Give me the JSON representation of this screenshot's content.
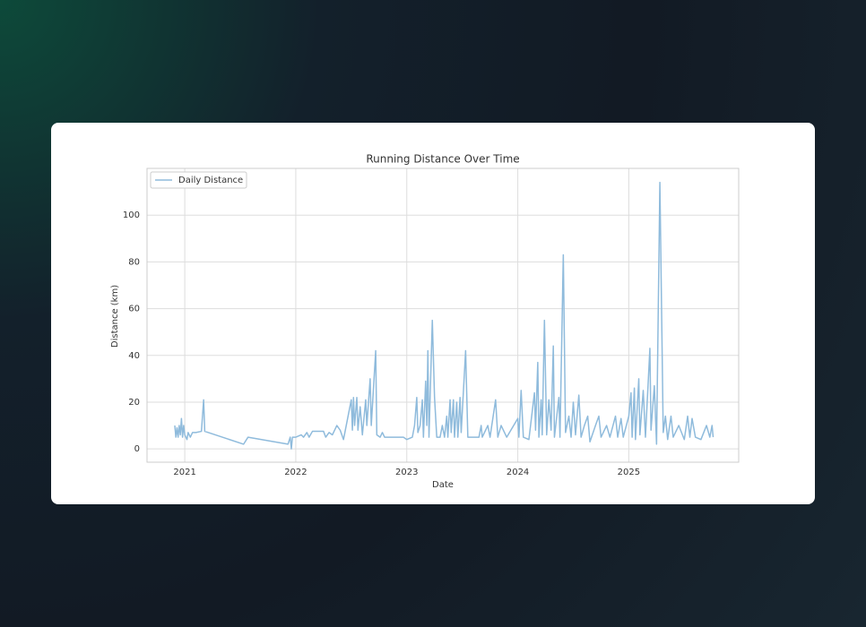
{
  "chart_data": {
    "type": "line",
    "title": "Running Distance Over Time",
    "x_label": "Date",
    "y_label": "Distance (km)",
    "x": [
      2020.91,
      2020.92,
      2020.93,
      2020.94,
      2020.95,
      2020.96,
      2020.97,
      2020.98,
      2020.99,
      2021.0,
      2021.02,
      2021.03,
      2021.05,
      2021.07,
      2021.1,
      2021.15,
      2021.17,
      2021.18,
      2021.53,
      2021.57,
      2021.93,
      2021.95,
      2021.96,
      2021.97,
      2022.0,
      2022.05,
      2022.07,
      2022.1,
      2022.12,
      2022.15,
      2022.25,
      2022.27,
      2022.3,
      2022.33,
      2022.37,
      2022.4,
      2022.43,
      2022.5,
      2022.51,
      2022.52,
      2022.53,
      2022.55,
      2022.56,
      2022.58,
      2022.6,
      2022.63,
      2022.64,
      2022.67,
      2022.68,
      2022.72,
      2022.73,
      2022.76,
      2022.78,
      2022.8,
      2022.9,
      2022.97,
      2023.0,
      2023.05,
      2023.07,
      2023.09,
      2023.1,
      2023.12,
      2023.14,
      2023.15,
      2023.17,
      2023.18,
      2023.19,
      2023.2,
      2023.23,
      2023.25,
      2023.27,
      2023.3,
      2023.32,
      2023.34,
      2023.36,
      2023.37,
      2023.39,
      2023.4,
      2023.42,
      2023.43,
      2023.45,
      2023.46,
      2023.48,
      2023.49,
      2023.53,
      2023.55,
      2023.6,
      2023.65,
      2023.67,
      2023.68,
      2023.73,
      2023.75,
      2023.8,
      2023.82,
      2023.85,
      2023.9,
      2024.0,
      2024.01,
      2024.03,
      2024.05,
      2024.1,
      2024.15,
      2024.16,
      2024.18,
      2024.19,
      2024.21,
      2024.22,
      2024.24,
      2024.26,
      2024.28,
      2024.3,
      2024.32,
      2024.33,
      2024.37,
      2024.38,
      2024.41,
      2024.43,
      2024.46,
      2024.48,
      2024.5,
      2024.52,
      2024.55,
      2024.57,
      2024.6,
      2024.63,
      2024.65,
      2024.7,
      2024.73,
      2024.75,
      2024.8,
      2024.83,
      2024.88,
      2024.9,
      2024.93,
      2024.95,
      2025.0,
      2025.02,
      2025.03,
      2025.05,
      2025.06,
      2025.09,
      2025.1,
      2025.13,
      2025.15,
      2025.19,
      2025.2,
      2025.23,
      2025.25,
      2025.28,
      2025.31,
      2025.33,
      2025.35,
      2025.38,
      2025.4,
      2025.45,
      2025.5,
      2025.53,
      2025.55,
      2025.57,
      2025.6,
      2025.65,
      2025.7,
      2025.73,
      2025.75,
      2025.76
    ],
    "series": [
      {
        "name": "Daily Distance",
        "color": "#8fbbdc",
        "values": [
          10,
          5,
          9,
          5,
          10,
          6,
          13,
          5,
          10,
          6,
          4,
          7,
          5,
          7,
          7,
          7.5,
          21,
          7.5,
          2,
          5,
          2,
          5,
          0,
          5,
          5,
          6,
          5,
          7,
          5,
          7.5,
          7.5,
          5,
          7,
          6,
          10,
          8,
          4,
          21,
          8,
          22,
          10,
          22,
          8,
          18,
          6,
          21,
          10,
          30,
          10,
          42,
          6,
          5,
          7,
          5,
          5,
          5,
          4,
          5,
          10,
          22,
          7,
          10,
          21,
          5,
          29,
          10,
          42,
          5,
          55,
          22,
          5,
          5,
          10,
          5,
          14,
          5,
          21,
          7,
          21,
          5,
          20,
          5,
          22,
          7,
          42,
          5,
          5,
          5,
          10,
          5,
          10,
          5,
          21,
          5,
          10,
          5,
          13,
          5,
          25,
          5,
          4,
          24,
          8,
          37,
          5,
          21,
          6,
          55,
          6,
          21,
          8,
          44,
          5,
          22,
          5,
          83,
          7,
          14,
          5,
          20,
          6,
          23,
          5,
          10,
          14,
          3,
          10,
          14,
          5,
          10,
          5,
          14,
          5,
          13,
          5,
          14,
          24,
          5,
          26,
          4,
          30,
          6,
          25,
          5,
          43,
          8,
          27,
          2,
          114,
          7,
          14,
          4,
          14,
          5,
          10,
          4,
          14,
          5,
          13,
          5,
          4,
          10,
          5,
          10,
          5
        ]
      }
    ],
    "xlim": [
      2020.66,
      2025.99
    ],
    "ylim": [
      -5.7,
      120
    ],
    "xticks": [
      2021,
      2022,
      2023,
      2024,
      2025
    ],
    "yticks": [
      0,
      20,
      40,
      60,
      80,
      100
    ],
    "grid": true,
    "legend": "upper left"
  }
}
